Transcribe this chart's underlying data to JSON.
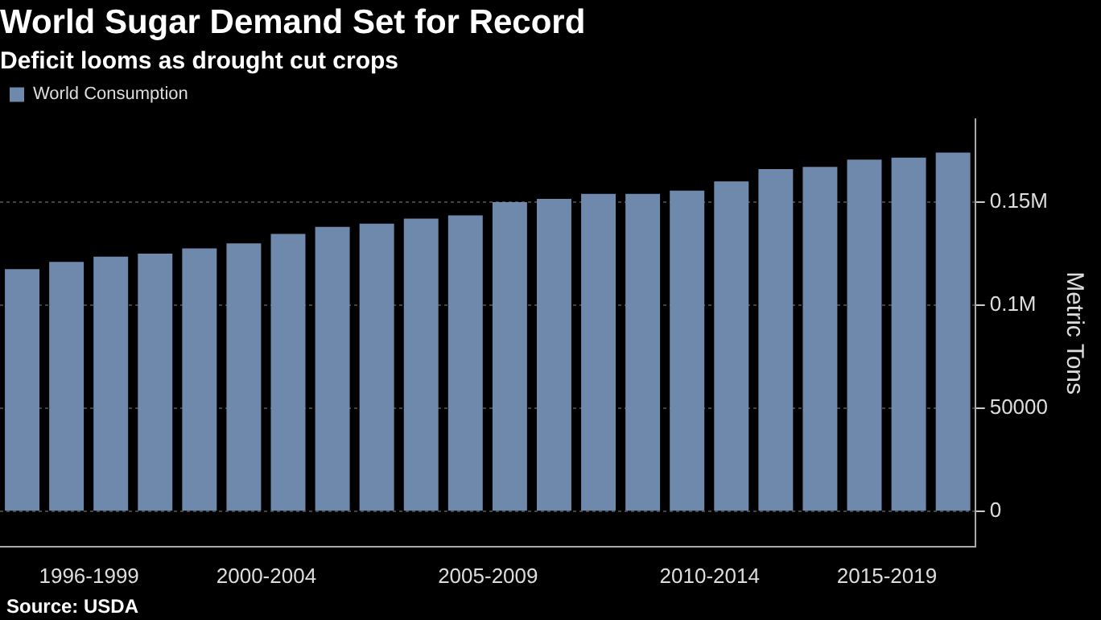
{
  "chart_data": {
    "type": "bar",
    "title": "World Sugar Demand Set for Record",
    "subtitle": "Deficit looms as drought cut crops",
    "ylabel": "Metric Tons",
    "annotations": [
      "Source: USDA"
    ],
    "categories": [
      null,
      "1996-1999",
      null,
      null,
      null,
      "2000-2004",
      null,
      null,
      null,
      null,
      "2005-2009",
      null,
      null,
      null,
      null,
      "2010-2014",
      null,
      null,
      null,
      "2015-2019",
      null,
      null
    ],
    "series": [
      {
        "name": "World Consumption",
        "color": "#6f89ad",
        "values": [
          117500,
          121000,
          123500,
          125000,
          127500,
          130000,
          134500,
          138000,
          139500,
          142000,
          143500,
          150000,
          151500,
          154000,
          154000,
          155500,
          160000,
          166000,
          167000,
          170500,
          171500,
          174000
        ]
      }
    ],
    "ylim": [
      -17000,
      190000
    ],
    "yticks": [
      0,
      50000,
      {
        "value": 100000,
        "label": "0.1M"
      },
      {
        "value": 150000,
        "label": "0.15M"
      }
    ],
    "grid": "y",
    "legend": "top left"
  }
}
